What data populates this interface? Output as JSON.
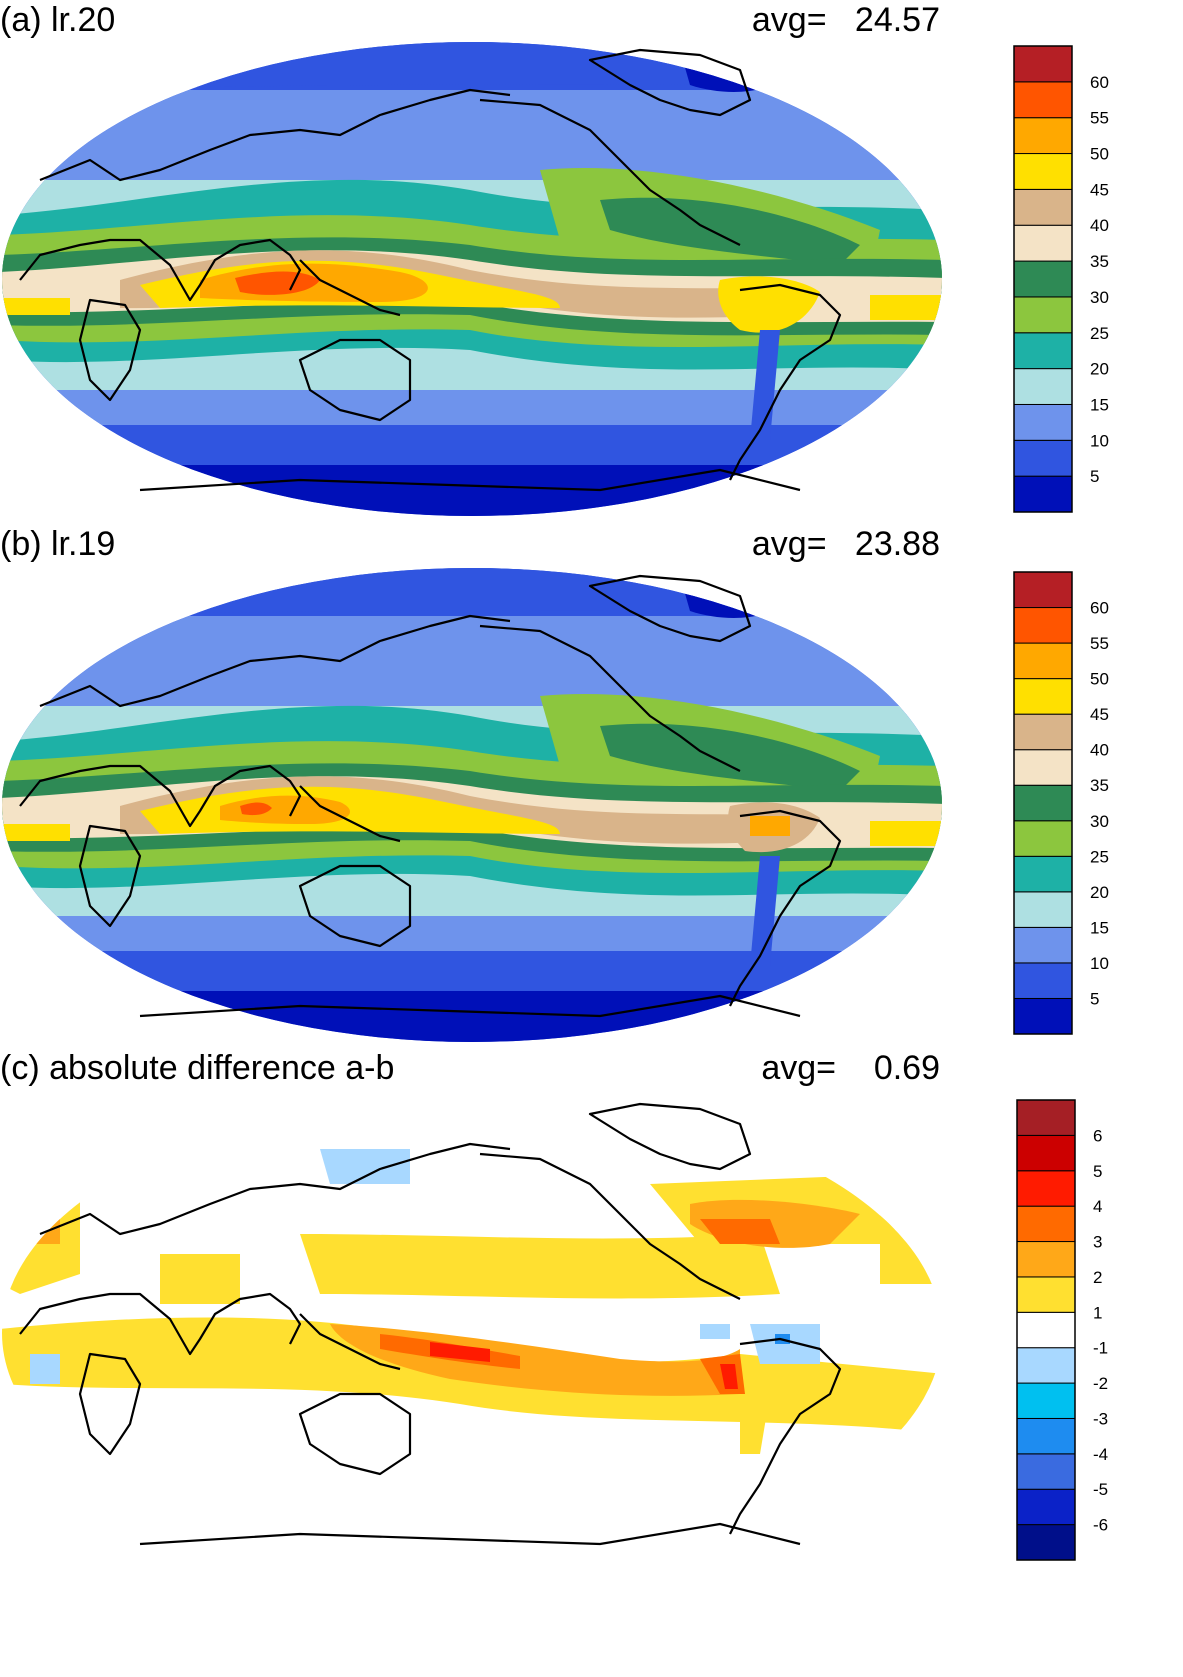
{
  "colors": {
    "main_scale": [
      "#0010b8",
      "#3055e0",
      "#6e93ec",
      "#aee0e2",
      "#1eb1a6",
      "#8cc63e",
      "#2e8a55",
      "#f4e3c6",
      "#d9b48a",
      "#ffe000",
      "#ffa800",
      "#ff5500",
      "#b51f25"
    ],
    "diff_scale": [
      "#000f8a",
      "#0b22c8",
      "#3a6be0",
      "#1e8cf0",
      "#00c0f0",
      "#a8d8ff",
      "#ffffff",
      "#ffe030",
      "#ffa818",
      "#ff6a00",
      "#ff1b00",
      "#cc0000",
      "#a51f25"
    ],
    "land_outline": "#000000"
  },
  "chart_data": [
    {
      "type": "heatmap",
      "panel_title": "(a) lr.20",
      "avg_label": "avg=",
      "avg_value": "24.57",
      "colorbar_ticks": [
        "5",
        "10",
        "15",
        "20",
        "25",
        "30",
        "35",
        "40",
        "45",
        "50",
        "55",
        "60"
      ]
    },
    {
      "type": "heatmap",
      "panel_title": "(b) lr.19",
      "avg_label": "avg=",
      "avg_value": "23.88",
      "colorbar_ticks": [
        "5",
        "10",
        "15",
        "20",
        "25",
        "30",
        "35",
        "40",
        "45",
        "50",
        "55",
        "60"
      ]
    },
    {
      "type": "heatmap",
      "panel_title": "(c) absolute difference a-b",
      "avg_label": "avg=",
      "avg_value": "0.69",
      "colorbar_ticks": [
        "-6",
        "-5",
        "-4",
        "-3",
        "-2",
        "-1",
        "1",
        "2",
        "3",
        "4",
        "5",
        "6"
      ]
    }
  ]
}
